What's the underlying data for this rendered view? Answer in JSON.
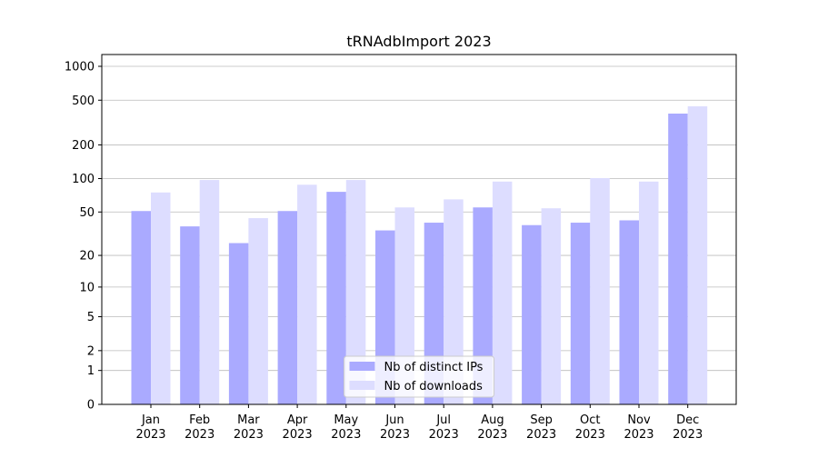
{
  "chart_data": {
    "type": "bar",
    "title": "tRNAdbImport 2023",
    "categories": [
      "Jan\n2023",
      "Feb\n2023",
      "Mar\n2023",
      "Apr\n2023",
      "May\n2023",
      "Jun\n2023",
      "Jul\n2023",
      "Aug\n2023",
      "Sep\n2023",
      "Oct\n2023",
      "Nov\n2023",
      "Dec\n2023"
    ],
    "series": [
      {
        "name": "Nb of distinct IPs",
        "color": "#aaaaff",
        "values": [
          51,
          37,
          26,
          51,
          76,
          34,
          40,
          55,
          38,
          40,
          42,
          380
        ]
      },
      {
        "name": "Nb of downloads",
        "color": "#ddddff",
        "values": [
          75,
          97,
          44,
          88,
          97,
          55,
          65,
          94,
          54,
          101,
          94,
          441
        ]
      }
    ],
    "yscale": "log1p",
    "ylim": [
      0,
      1273
    ],
    "yticks": [
      0,
      1,
      2,
      5,
      10,
      20,
      50,
      100,
      200,
      500,
      1000
    ],
    "grid": true,
    "legend": "lower center"
  }
}
